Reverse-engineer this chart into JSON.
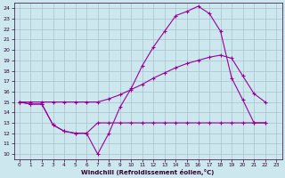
{
  "xlabel": "Windchill (Refroidissement éolien,°C)",
  "background_color": "#cce8ee",
  "grid_color": "#aac0cc",
  "line_color": "#990099",
  "xlim": [
    -0.5,
    23.5
  ],
  "ylim": [
    9.5,
    24.5
  ],
  "yticks": [
    10,
    11,
    12,
    13,
    14,
    15,
    16,
    17,
    18,
    19,
    20,
    21,
    22,
    23,
    24
  ],
  "xticks": [
    0,
    1,
    2,
    3,
    4,
    5,
    6,
    7,
    8,
    9,
    10,
    11,
    12,
    13,
    14,
    15,
    16,
    17,
    18,
    19,
    20,
    21,
    22,
    23
  ],
  "curve1_x": [
    0,
    1,
    2,
    3,
    4,
    5,
    6,
    7,
    8,
    9,
    10,
    11,
    12,
    13,
    14,
    15,
    16,
    17,
    18,
    19,
    20,
    21,
    22
  ],
  "curve1_y": [
    15.0,
    14.8,
    14.8,
    12.8,
    12.2,
    12.0,
    12.0,
    10.0,
    12.0,
    14.5,
    16.3,
    18.5,
    20.3,
    21.8,
    23.3,
    23.7,
    24.2,
    23.5,
    21.8,
    17.3,
    15.2,
    13.0,
    13.0
  ],
  "curve2_x": [
    0,
    1,
    2,
    3,
    4,
    5,
    6,
    7,
    8,
    9,
    10,
    11,
    12,
    13,
    14,
    15,
    16,
    17,
    18,
    19,
    20,
    21,
    22
  ],
  "curve2_y": [
    15.0,
    14.8,
    14.8,
    12.8,
    12.2,
    12.0,
    12.0,
    13.0,
    13.0,
    13.0,
    13.0,
    13.0,
    13.0,
    13.0,
    13.0,
    13.0,
    13.0,
    13.0,
    13.0,
    13.0,
    13.0,
    13.0,
    13.0
  ],
  "curve3_x": [
    0,
    1,
    2,
    3,
    4,
    5,
    6,
    7,
    8,
    9,
    10,
    11,
    12,
    13,
    14,
    15,
    16,
    17,
    18,
    19,
    20,
    21,
    22
  ],
  "curve3_y": [
    15.0,
    15.0,
    15.0,
    15.0,
    15.0,
    15.0,
    15.0,
    15.0,
    15.3,
    15.7,
    16.2,
    16.7,
    17.3,
    17.8,
    18.3,
    18.7,
    19.0,
    19.3,
    19.5,
    19.2,
    17.5,
    15.8,
    15.0
  ]
}
